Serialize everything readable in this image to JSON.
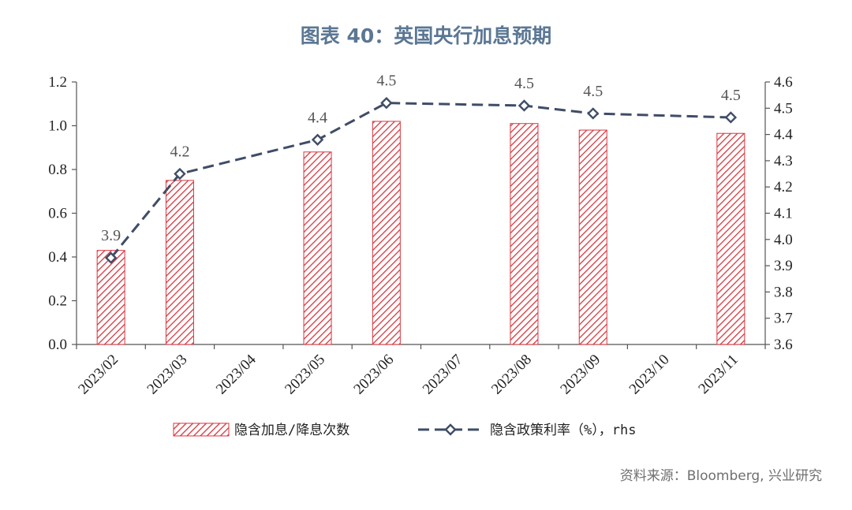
{
  "figure": {
    "title": "图表 40：英国央行加息预期",
    "source": "资料来源：Bloomberg, 兴业研究"
  },
  "chart_data": {
    "type": "bar",
    "categories": [
      "2023/02",
      "2023/03",
      "2023/04",
      "2023/05",
      "2023/06",
      "2023/07",
      "2023/08",
      "2023/09",
      "2023/10",
      "2023/11"
    ],
    "series": [
      {
        "name": "隐含加息/降息次数",
        "type": "bar",
        "axis": "left",
        "values": [
          0.43,
          0.75,
          null,
          0.88,
          1.02,
          null,
          1.01,
          0.98,
          null,
          0.965
        ],
        "color": "#d9363e",
        "pattern": "diagonal-hatch"
      },
      {
        "name": "隐含政策利率（%），rhs",
        "type": "line",
        "axis": "right",
        "values": [
          3.93,
          4.25,
          null,
          4.38,
          4.52,
          null,
          4.51,
          4.48,
          null,
          4.465
        ],
        "data_labels": [
          "3.9",
          "4.2",
          "",
          "4.4",
          "4.5",
          "",
          "4.5",
          "4.5",
          "",
          "4.5"
        ],
        "color": "#3f4d66",
        "style": "dashed",
        "marker": "diamond"
      }
    ],
    "y_left": {
      "min": 0.0,
      "max": 1.2,
      "ticks": [
        "0.0",
        "0.2",
        "0.4",
        "0.6",
        "0.8",
        "1.0",
        "1.2"
      ]
    },
    "y_right": {
      "min": 3.6,
      "max": 4.6,
      "ticks": [
        "3.6",
        "3.7",
        "3.8",
        "3.9",
        "4.0",
        "4.1",
        "4.2",
        "4.3",
        "4.4",
        "4.5",
        "4.6"
      ]
    },
    "grid": false,
    "legend": "bottom"
  }
}
